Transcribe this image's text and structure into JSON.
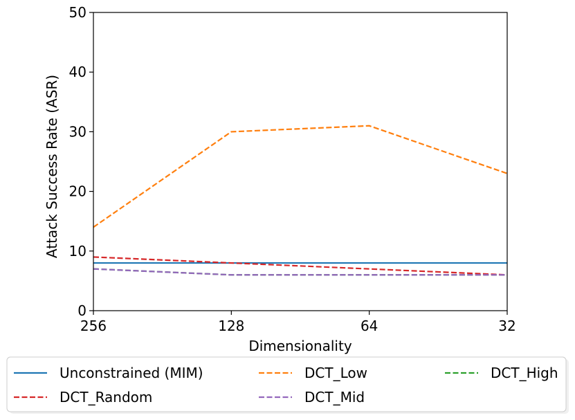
{
  "chart_data": {
    "type": "line",
    "title": "",
    "xlabel": "Dimensionality",
    "ylabel": "Attack Success Rate (ASR)",
    "categories": [
      "256",
      "128",
      "64",
      "32"
    ],
    "ylim": [
      0,
      50
    ],
    "yticks": [
      0,
      10,
      20,
      30,
      40,
      50
    ],
    "grid": false,
    "legend_position": "bottom",
    "series": [
      {
        "name": "Unconstrained (MIM)",
        "values": [
          8,
          8,
          8,
          8
        ],
        "color": "#1f77b4",
        "dash": "solid"
      },
      {
        "name": "DCT_Low",
        "values": [
          14,
          30,
          31,
          23
        ],
        "color": "#ff7f0e",
        "dash": "dashed"
      },
      {
        "name": "DCT_High",
        "values": [
          7,
          6,
          6,
          6
        ],
        "color": "#2ca02c",
        "dash": "dashed"
      },
      {
        "name": "DCT_Random",
        "values": [
          9,
          8,
          7,
          6
        ],
        "color": "#d62728",
        "dash": "dashed"
      },
      {
        "name": "DCT_Mid",
        "values": [
          7,
          6,
          6,
          6
        ],
        "color": "#9467bd",
        "dash": "dashed"
      }
    ]
  }
}
